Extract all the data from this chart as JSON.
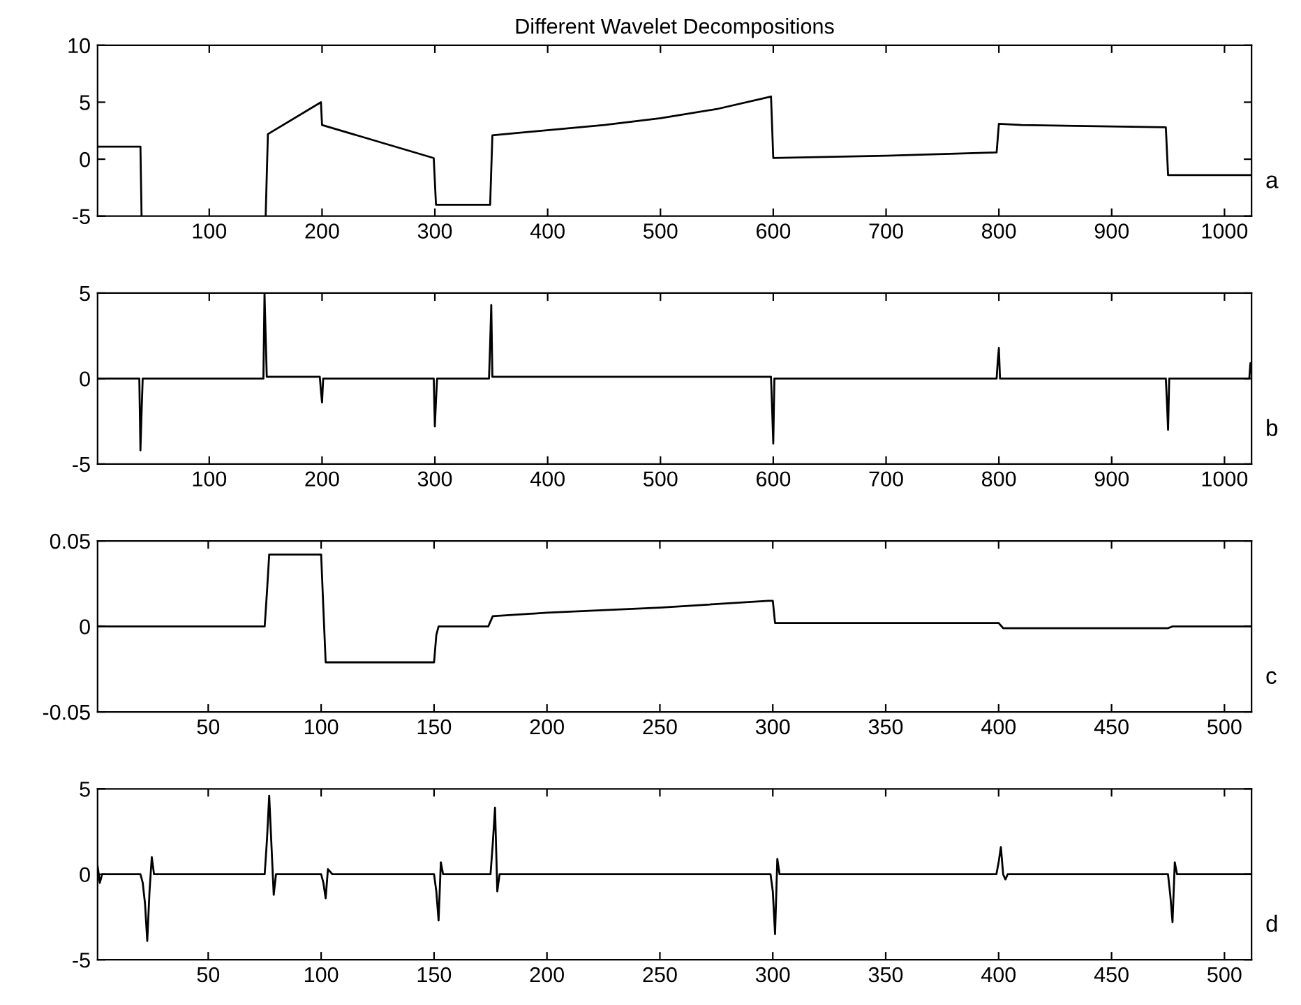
{
  "chart_data": [
    {
      "type": "line",
      "title": "Different Wavelet Decompositions",
      "annotations": [
        "a"
      ],
      "xlim": [
        1,
        1024
      ],
      "ylim": [
        -5,
        10
      ],
      "xticks": [
        100,
        200,
        300,
        400,
        500,
        600,
        700,
        800,
        900,
        1000
      ],
      "yticks": [
        -5,
        0,
        5,
        10
      ],
      "grid": false,
      "legend": false,
      "series": [
        {
          "color": "#000000",
          "x": [
            1,
            39,
            40,
            95,
            150,
            152,
            199,
            200,
            299,
            301,
            349,
            351,
            450,
            500,
            550,
            598,
            600,
            700,
            798,
            800,
            820,
            948,
            950,
            1024
          ],
          "values": [
            1.1,
            1.1,
            -5,
            null,
            -5,
            2.2,
            5,
            3,
            0.1,
            -4,
            -4,
            2.1,
            3.0,
            3.6,
            4.4,
            5.5,
            0.1,
            0.3,
            0.6,
            3.1,
            3.0,
            2.8,
            -1.4,
            -1.4
          ]
        }
      ]
    },
    {
      "type": "line",
      "annotations": [
        "b"
      ],
      "xlim": [
        1,
        1024
      ],
      "ylim": [
        -5,
        5
      ],
      "xticks": [
        100,
        200,
        300,
        400,
        500,
        600,
        700,
        800,
        900,
        1000
      ],
      "yticks": [
        -5,
        0,
        5
      ],
      "grid": false,
      "legend": false,
      "series": [
        {
          "color": "#000000",
          "x": [
            1,
            38,
            39,
            40,
            41,
            148,
            149,
            150,
            151,
            198,
            199,
            200,
            201,
            299,
            300,
            301,
            302,
            348,
            349,
            350,
            351,
            598,
            599,
            600,
            601,
            798,
            799,
            800,
            801,
            948,
            949,
            950,
            951,
            1022,
            1023,
            1024
          ],
          "values": [
            0,
            0,
            -4.2,
            -2,
            0,
            0,
            5,
            2.5,
            0.1,
            0.1,
            -0.7,
            -1.4,
            0,
            0,
            -2.8,
            -1.3,
            0,
            0,
            2,
            4.3,
            0.1,
            0.1,
            -1.8,
            -3.8,
            0,
            0,
            1,
            1.8,
            0,
            0,
            -1.4,
            -3,
            0,
            0,
            0.9,
            0.9
          ]
        }
      ]
    },
    {
      "type": "line",
      "annotations": [
        "c"
      ],
      "xlim": [
        1,
        512
      ],
      "ylim": [
        -0.05,
        0.05
      ],
      "xticks": [
        50,
        100,
        150,
        200,
        250,
        300,
        350,
        400,
        450,
        500
      ],
      "yticks": [
        -0.05,
        0,
        0.05
      ],
      "grid": false,
      "legend": false,
      "series": [
        {
          "color": "#000000",
          "x": [
            1,
            75,
            76,
            77,
            100,
            101,
            102,
            150,
            151,
            152,
            174,
            176,
            200,
            250,
            298,
            300,
            301,
            400,
            402,
            475,
            477,
            512
          ],
          "values": [
            0,
            0,
            0.02,
            0.042,
            0.042,
            0.01,
            -0.021,
            -0.021,
            -0.005,
            0,
            0,
            0.006,
            0.008,
            0.011,
            0.015,
            0.015,
            0.002,
            0.002,
            -0.001,
            -0.001,
            0,
            0
          ]
        }
      ]
    },
    {
      "type": "line",
      "annotations": [
        "d"
      ],
      "xlim": [
        1,
        512
      ],
      "ylim": [
        -5,
        5
      ],
      "xticks": [
        50,
        100,
        150,
        200,
        250,
        300,
        350,
        400,
        450,
        500
      ],
      "yticks": [
        -5,
        0,
        5
      ],
      "grid": false,
      "legend": false,
      "series": [
        {
          "color": "#000000",
          "x": [
            1,
            2,
            3,
            20,
            21,
            22,
            23,
            24,
            25,
            26,
            75,
            76,
            77,
            78,
            79,
            80,
            100,
            101,
            102,
            103,
            105,
            150,
            151,
            152,
            153,
            154,
            175,
            176,
            177,
            178,
            179,
            299,
            300,
            301,
            302,
            303,
            399,
            400,
            401,
            402,
            403,
            404,
            475,
            476,
            477,
            478,
            479,
            512
          ],
          "values": [
            0.5,
            -0.5,
            0,
            0,
            -0.5,
            -1.7,
            -3.9,
            -1,
            1,
            0,
            0,
            2,
            4.6,
            1.7,
            -1.2,
            0,
            0,
            -0.5,
            -1.4,
            0.3,
            0,
            0,
            -1,
            -2.7,
            0.7,
            0,
            0,
            1.8,
            3.9,
            -1,
            0,
            0,
            -1,
            -3.5,
            0.9,
            0,
            0,
            0.7,
            1.6,
            0,
            -0.3,
            0,
            0,
            -1.2,
            -2.8,
            0.7,
            0,
            0
          ]
        }
      ]
    }
  ]
}
